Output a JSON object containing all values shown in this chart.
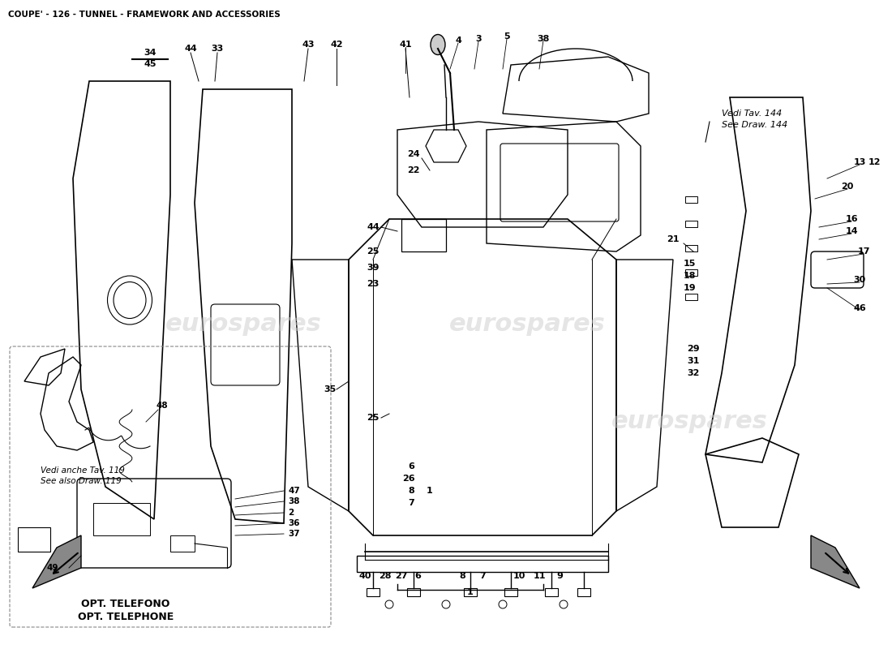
{
  "title": "COUPE' - 126 - TUNNEL - FRAMEWORK AND ACCESSORIES",
  "background_color": "#ffffff",
  "line_color": "#000000",
  "watermark_color": "#d0d0d0",
  "watermark_text": "eurospares",
  "title_fontsize": 8,
  "diagram_image": true,
  "note1_it": "Vedi anche Tav. 119",
  "note1_en": "See also Draw. 119",
  "note2_it": "Vedi Tav. 144",
  "note2_en": "See Draw. 144",
  "opt_it": "OPT. TELEFONO",
  "opt_en": "OPT. TELEPHONE"
}
